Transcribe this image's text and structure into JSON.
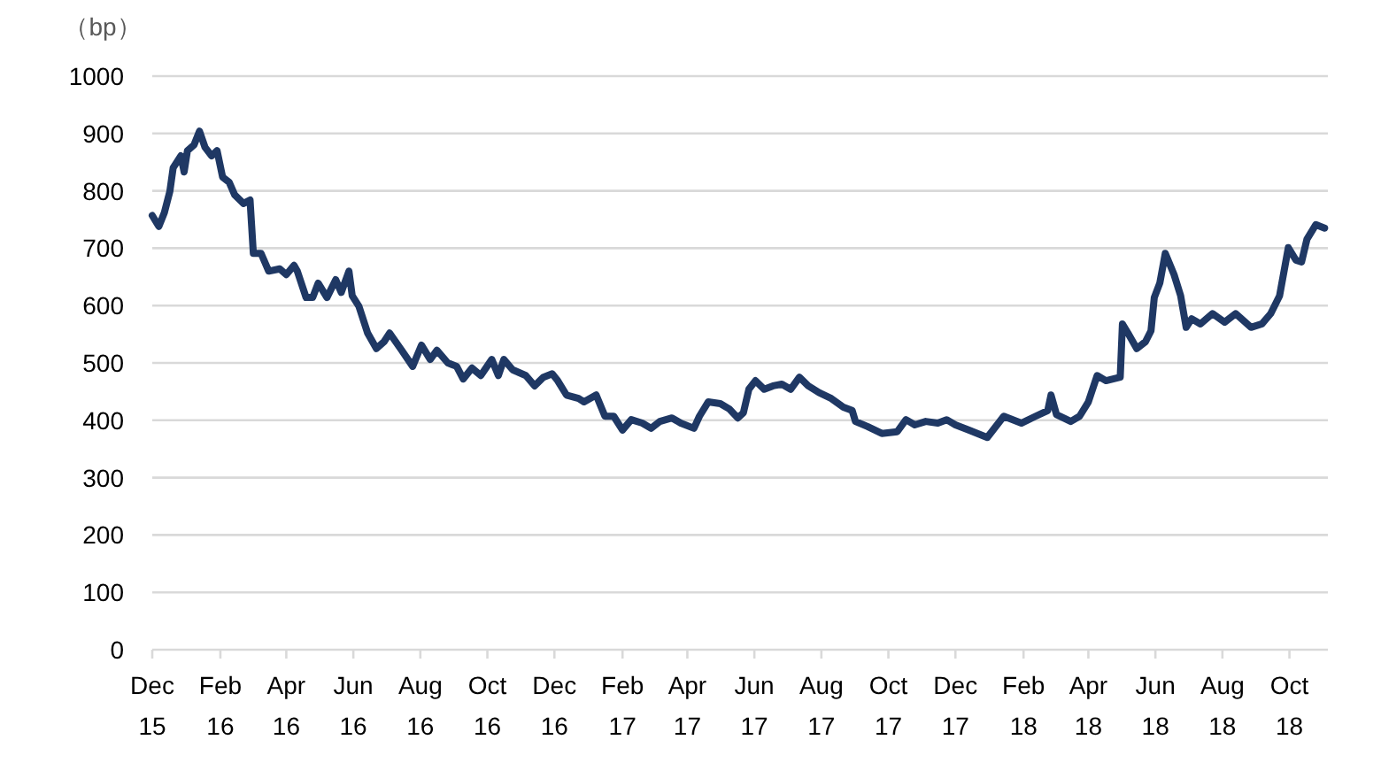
{
  "chart_data": {
    "type": "line",
    "ylabel": "（bp）",
    "x": [
      "2015-12-01",
      "2015-12-07",
      "2015-12-12",
      "2015-12-17",
      "2015-12-20",
      "2015-12-27",
      "2015-12-30",
      "2016-01-02",
      "2016-01-08",
      "2016-01-13",
      "2016-01-18",
      "2016-01-24",
      "2016-01-29",
      "2016-02-03",
      "2016-02-09",
      "2016-02-14",
      "2016-02-22",
      "2016-02-28",
      "2016-03-02",
      "2016-03-09",
      "2016-03-16",
      "2016-03-26",
      "2016-04-01",
      "2016-04-08",
      "2016-04-11",
      "2016-04-19",
      "2016-04-25",
      "2016-04-30",
      "2016-05-08",
      "2016-05-16",
      "2016-05-21",
      "2016-05-28",
      "2016-05-31",
      "2016-06-06",
      "2016-06-14",
      "2016-06-22",
      "2016-06-29",
      "2016-07-04",
      "2016-07-15",
      "2016-07-25",
      "2016-08-02",
      "2016-08-10",
      "2016-08-16",
      "2016-08-26",
      "2016-09-03",
      "2016-09-09",
      "2016-09-17",
      "2016-09-25",
      "2016-10-05",
      "2016-10-11",
      "2016-10-16",
      "2016-10-24",
      "2016-11-05",
      "2016-11-13",
      "2016-11-21",
      "2016-11-29",
      "2016-12-04",
      "2016-12-12",
      "2016-12-23",
      "2016-12-28",
      "2017-01-08",
      "2017-01-16",
      "2017-01-24",
      "2017-02-01",
      "2017-02-09",
      "2017-02-19",
      "2017-02-27",
      "2017-03-07",
      "2017-03-18",
      "2017-03-26",
      "2017-04-07",
      "2017-04-12",
      "2017-04-20",
      "2017-05-01",
      "2017-05-09",
      "2017-05-17",
      "2017-05-22",
      "2017-05-27",
      "2017-06-02",
      "2017-06-10",
      "2017-06-18",
      "2017-06-26",
      "2017-07-04",
      "2017-07-12",
      "2017-07-20",
      "2017-07-30",
      "2017-08-10",
      "2017-08-21",
      "2017-08-29",
      "2017-09-01",
      "2017-09-12",
      "2017-09-25",
      "2017-10-09",
      "2017-10-17",
      "2017-10-25",
      "2017-11-04",
      "2017-11-15",
      "2017-11-23",
      "2017-12-01",
      "2017-12-13",
      "2017-12-30",
      "2018-01-14",
      "2018-01-30",
      "2018-02-12",
      "2018-02-23",
      "2018-02-26",
      "2018-03-03",
      "2018-03-16",
      "2018-03-24",
      "2018-04-01",
      "2018-04-09",
      "2018-04-17",
      "2018-04-30",
      "2018-05-02",
      "2018-05-07",
      "2018-05-15",
      "2018-05-23",
      "2018-05-28",
      "2018-05-31",
      "2018-06-05",
      "2018-06-10",
      "2018-06-18",
      "2018-06-24",
      "2018-06-29",
      "2018-07-04",
      "2018-07-12",
      "2018-07-23",
      "2018-08-03",
      "2018-08-13",
      "2018-08-27",
      "2018-09-06",
      "2018-09-14",
      "2018-09-22",
      "2018-09-30",
      "2018-10-07",
      "2018-10-12",
      "2018-10-17",
      "2018-10-25",
      "2018-11-02"
    ],
    "series": [
      {
        "color": "#1f3864",
        "values": [
          757,
          738,
          762,
          799,
          840,
          861,
          833,
          870,
          880,
          904,
          876,
          861,
          870,
          824,
          815,
          793,
          778,
          784,
          691,
          691,
          660,
          664,
          654,
          670,
          660,
          614,
          614,
          639,
          614,
          645,
          623,
          660,
          617,
          599,
          552,
          525,
          537,
          552,
          522,
          494,
          531,
          506,
          522,
          500,
          494,
          472,
          491,
          478,
          506,
          478,
          506,
          488,
          478,
          460,
          475,
          481,
          469,
          444,
          438,
          432,
          444,
          407,
          407,
          383,
          401,
          395,
          386,
          398,
          404,
          395,
          386,
          407,
          432,
          429,
          420,
          404,
          413,
          454,
          469,
          454,
          460,
          463,
          454,
          475,
          460,
          448,
          438,
          423,
          417,
          398,
          389,
          377,
          380,
          401,
          392,
          398,
          395,
          401,
          392,
          383,
          370,
          407,
          395,
          407,
          417,
          444,
          410,
          398,
          407,
          432,
          478,
          469,
          475,
          568,
          552,
          525,
          537,
          556,
          614,
          639,
          691,
          654,
          617,
          562,
          577,
          568,
          586,
          571,
          586,
          562,
          568,
          586,
          617,
          701,
          679,
          676,
          716,
          741,
          735
        ]
      }
    ],
    "xlim": [
      "2015-12-01",
      "2018-11-05"
    ],
    "xticks": [
      {
        "value": "2015-12-01",
        "label": "Dec\n15"
      },
      {
        "value": "2016-02-01",
        "label": "Feb\n16"
      },
      {
        "value": "2016-04-01",
        "label": "Apr\n16"
      },
      {
        "value": "2016-06-01",
        "label": "Jun\n16"
      },
      {
        "value": "2016-08-01",
        "label": "Aug\n16"
      },
      {
        "value": "2016-10-01",
        "label": "Oct\n16"
      },
      {
        "value": "2016-12-01",
        "label": "Dec\n16"
      },
      {
        "value": "2017-02-01",
        "label": "Feb\n17"
      },
      {
        "value": "2017-04-01",
        "label": "Apr\n17"
      },
      {
        "value": "2017-06-01",
        "label": "Jun\n17"
      },
      {
        "value": "2017-08-01",
        "label": "Aug\n17"
      },
      {
        "value": "2017-10-01",
        "label": "Oct\n17"
      },
      {
        "value": "2017-12-01",
        "label": "Dec\n17"
      },
      {
        "value": "2018-02-01",
        "label": "Feb\n18"
      },
      {
        "value": "2018-04-01",
        "label": "Apr\n18"
      },
      {
        "value": "2018-06-01",
        "label": "Jun\n18"
      },
      {
        "value": "2018-08-01",
        "label": "Aug\n18"
      },
      {
        "value": "2018-10-01",
        "label": "Oct\n18"
      }
    ],
    "ylim": [
      0,
      1000
    ],
    "yticks": [
      0,
      100,
      200,
      300,
      400,
      500,
      600,
      700,
      800,
      900,
      1000
    ],
    "grid": "y",
    "marker": "none",
    "line_style": "solid"
  }
}
